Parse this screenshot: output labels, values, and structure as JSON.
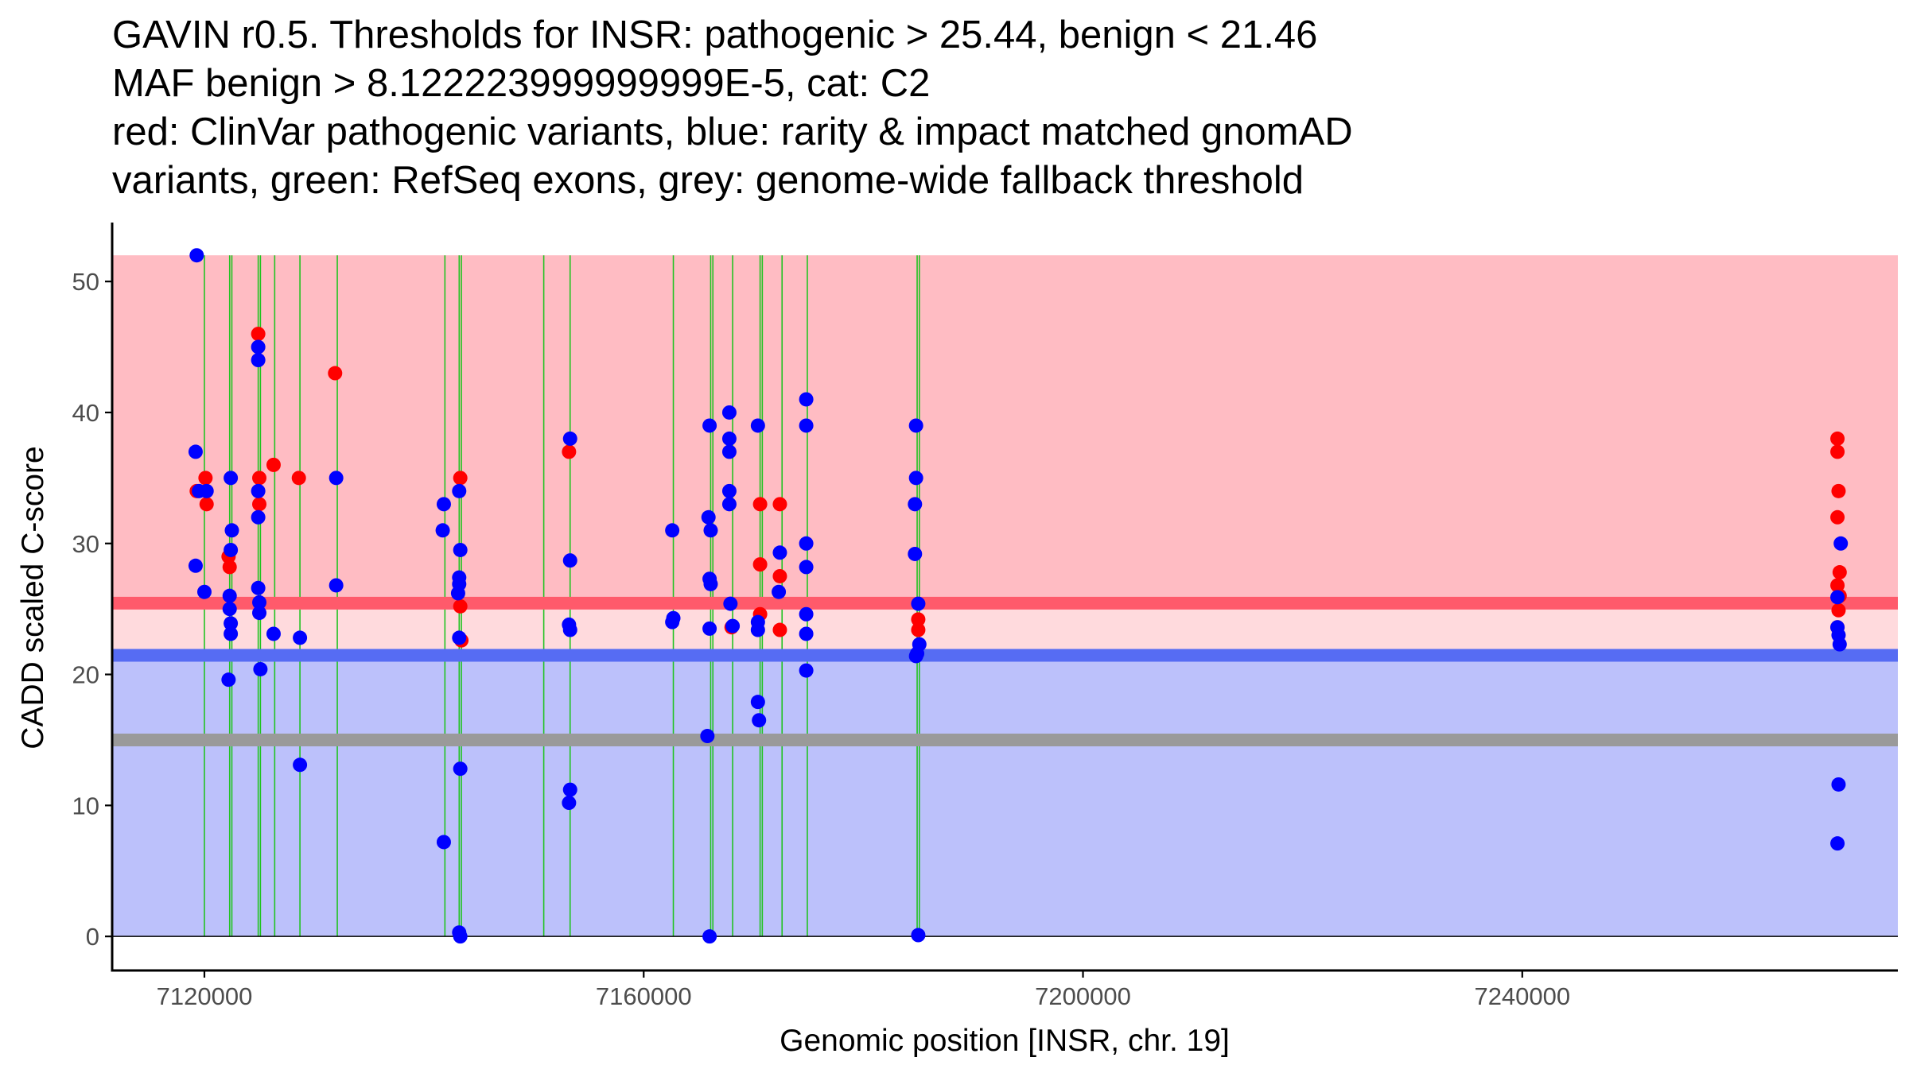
{
  "title_lines": [
    "GAVIN r0.5. Thresholds for INSR: pathogenic > 25.44, benign < 21.46",
    "MAF benign > 8.122223999999999E-5, cat: C2",
    "red: ClinVar pathogenic variants, blue: rarity & impact matched gnomAD",
    "variants, green: RefSeq exons, grey: genome-wide fallback threshold"
  ],
  "colors": {
    "pathogenic_fill": "#ffbcc3",
    "benign_fill": "#bcc1fb",
    "middle_fill": "#ffdadd",
    "pathogenic_line": "#ff5a6b",
    "benign_line": "#566cf3",
    "fallback_line": "#9a9a9a",
    "exon_line": "#22c322",
    "pathogenic_point": "#ff0000",
    "benign_point": "#0000ff",
    "axis": "#000000",
    "tick_label": "#4d4d4d"
  },
  "chart_data": {
    "type": "scatter",
    "xlabel": "Genomic position [INSR, chr. 19]",
    "ylabel": "CADD scaled C-score",
    "xlim": [
      7111600,
      7274200
    ],
    "ylim": [
      -2.6,
      54.5
    ],
    "x_ticks": [
      7120000,
      7160000,
      7200000,
      7240000
    ],
    "x_tick_labels": [
      "7120000",
      "7160000",
      "7200000",
      "7240000"
    ],
    "y_ticks": [
      0,
      10,
      20,
      30,
      40,
      50
    ],
    "y_tick_labels": [
      "0",
      "10",
      "20",
      "30",
      "40",
      "50"
    ],
    "regions": {
      "x_range": [
        7111600,
        7274200
      ],
      "pathogenic": {
        "from": 25.44,
        "to": 52
      },
      "between": {
        "from": 21.46,
        "to": 25.44
      },
      "benign": {
        "from": 0,
        "to": 21.46
      }
    },
    "thresholds": {
      "pathogenic": 25.44,
      "benign": 21.46,
      "fallback": 15
    },
    "exon_lines": [
      7120000,
      7122300,
      7122500,
      7124900,
      7125100,
      7126400,
      7128700,
      7132100,
      7141900,
      7143200,
      7143400,
      7150900,
      7153300,
      7162700,
      7166100,
      7166300,
      7168100,
      7170600,
      7170800,
      7172600,
      7174900,
      7184900,
      7185100
    ],
    "series": [
      {
        "name": "ClinVar pathogenic",
        "color": "#ff0000",
        "points": [
          [
            7119300,
            34.0
          ],
          [
            7120100,
            35.0
          ],
          [
            7120200,
            33.0
          ],
          [
            7122200,
            29.0
          ],
          [
            7122300,
            28.2
          ],
          [
            7124900,
            46.0
          ],
          [
            7125000,
            35.0
          ],
          [
            7125000,
            33.0
          ],
          [
            7126300,
            36.0
          ],
          [
            7128600,
            35.0
          ],
          [
            7131900,
            43.0
          ],
          [
            7143300,
            35.0
          ],
          [
            7143300,
            25.2
          ],
          [
            7143400,
            22.6
          ],
          [
            7153200,
            37.0
          ],
          [
            7168000,
            23.6
          ],
          [
            7170600,
            33.0
          ],
          [
            7170600,
            28.4
          ],
          [
            7170600,
            24.6
          ],
          [
            7172400,
            33.0
          ],
          [
            7172400,
            27.5
          ],
          [
            7172400,
            23.4
          ],
          [
            7185000,
            24.2
          ],
          [
            7185000,
            23.4
          ],
          [
            7268700,
            38.0
          ],
          [
            7268700,
            37.0
          ],
          [
            7268800,
            34.0
          ],
          [
            7268700,
            32.0
          ],
          [
            7268900,
            27.8
          ],
          [
            7268700,
            26.8
          ],
          [
            7268900,
            26.0
          ],
          [
            7268800,
            24.9
          ],
          [
            7268700,
            23.6
          ]
        ]
      },
      {
        "name": "gnomAD matched",
        "color": "#0000ff",
        "points": [
          [
            7119300,
            52.0
          ],
          [
            7119200,
            37.0
          ],
          [
            7119500,
            34.0
          ],
          [
            7119200,
            28.3
          ],
          [
            7120000,
            26.3
          ],
          [
            7120200,
            34.0
          ],
          [
            7122400,
            35.0
          ],
          [
            7122500,
            31.0
          ],
          [
            7122400,
            29.5
          ],
          [
            7122300,
            26.0
          ],
          [
            7122300,
            25.0
          ],
          [
            7122400,
            23.9
          ],
          [
            7122400,
            23.1
          ],
          [
            7122200,
            19.6
          ],
          [
            7124900,
            45.0
          ],
          [
            7124900,
            44.0
          ],
          [
            7124900,
            34.0
          ],
          [
            7124900,
            32.0
          ],
          [
            7124900,
            26.6
          ],
          [
            7125000,
            25.5
          ],
          [
            7125000,
            24.7
          ],
          [
            7125100,
            20.4
          ],
          [
            7126300,
            23.1
          ],
          [
            7128700,
            22.8
          ],
          [
            7128700,
            13.1
          ],
          [
            7132000,
            35.0
          ],
          [
            7132000,
            26.8
          ],
          [
            7141800,
            33.0
          ],
          [
            7141700,
            31.0
          ],
          [
            7141800,
            7.2
          ],
          [
            7143200,
            34.0
          ],
          [
            7143300,
            29.5
          ],
          [
            7143200,
            27.4
          ],
          [
            7143200,
            26.9
          ],
          [
            7143100,
            26.2
          ],
          [
            7143200,
            22.8
          ],
          [
            7143300,
            12.8
          ],
          [
            7143200,
            0.3
          ],
          [
            7143300,
            0.0
          ],
          [
            7153300,
            38.0
          ],
          [
            7153300,
            28.7
          ],
          [
            7153200,
            23.8
          ],
          [
            7153300,
            23.4
          ],
          [
            7153300,
            11.2
          ],
          [
            7153200,
            10.2
          ],
          [
            7162600,
            31.0
          ],
          [
            7162700,
            24.3
          ],
          [
            7162600,
            24.0
          ],
          [
            7166000,
            39.0
          ],
          [
            7165900,
            32.0
          ],
          [
            7166100,
            31.0
          ],
          [
            7166000,
            27.3
          ],
          [
            7166100,
            26.9
          ],
          [
            7166000,
            23.5
          ],
          [
            7165800,
            15.3
          ],
          [
            7166000,
            0.0
          ],
          [
            7167800,
            40.0
          ],
          [
            7167800,
            38.0
          ],
          [
            7167800,
            37.0
          ],
          [
            7167800,
            34.0
          ],
          [
            7167800,
            33.0
          ],
          [
            7167900,
            25.4
          ],
          [
            7168100,
            23.7
          ],
          [
            7170400,
            39.0
          ],
          [
            7170400,
            24.0
          ],
          [
            7170400,
            23.4
          ],
          [
            7170400,
            17.9
          ],
          [
            7170500,
            16.5
          ],
          [
            7172400,
            29.3
          ],
          [
            7172300,
            26.3
          ],
          [
            7174800,
            41.0
          ],
          [
            7174800,
            39.0
          ],
          [
            7174800,
            30.0
          ],
          [
            7174800,
            28.2
          ],
          [
            7174800,
            24.6
          ],
          [
            7174800,
            23.1
          ],
          [
            7174800,
            20.3
          ],
          [
            7184800,
            39.0
          ],
          [
            7184800,
            35.0
          ],
          [
            7184700,
            33.0
          ],
          [
            7184700,
            29.2
          ],
          [
            7185000,
            25.4
          ],
          [
            7185100,
            22.3
          ],
          [
            7184900,
            21.6
          ],
          [
            7184800,
            21.4
          ],
          [
            7185000,
            0.1
          ],
          [
            7269000,
            30.0
          ],
          [
            7268700,
            25.9
          ],
          [
            7268700,
            23.6
          ],
          [
            7268800,
            23.0
          ],
          [
            7268900,
            22.3
          ],
          [
            7268800,
            11.6
          ],
          [
            7268700,
            7.1
          ]
        ]
      }
    ]
  }
}
